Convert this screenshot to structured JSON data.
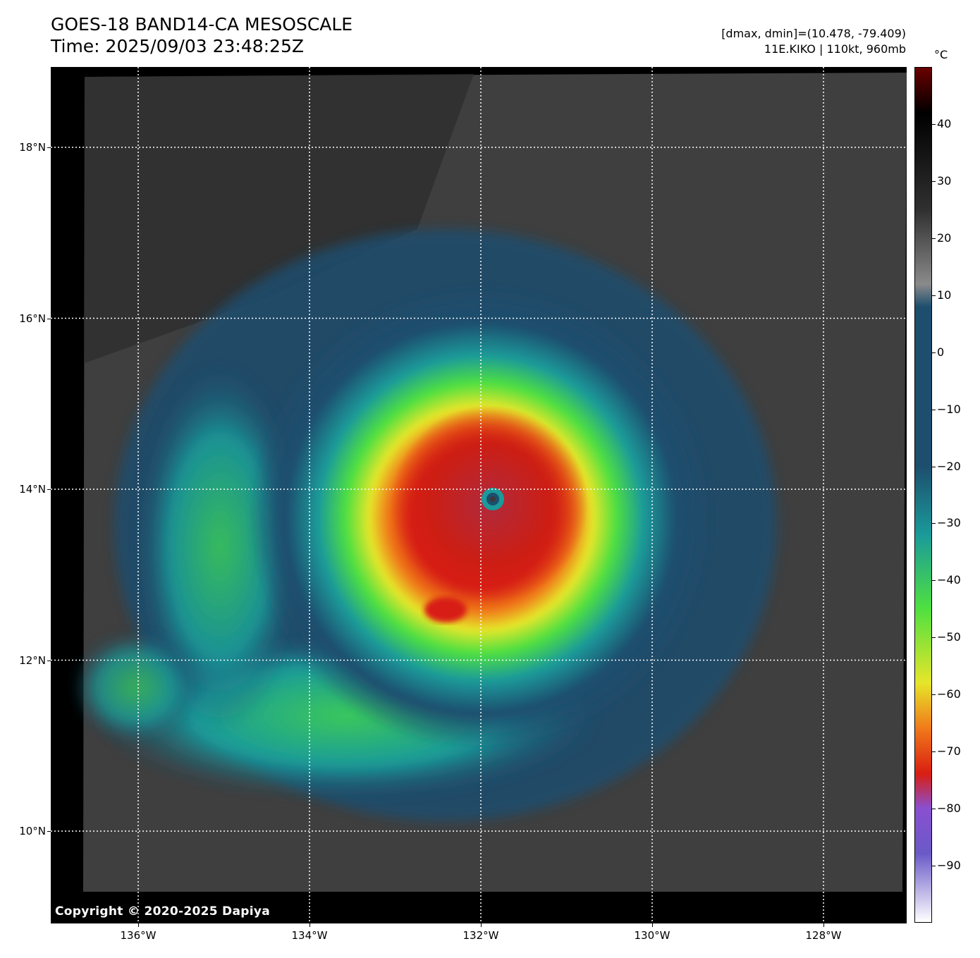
{
  "header": {
    "title": "GOES-18 BAND14-CA MESOSCALE",
    "time": "Time: 2025/09/03 23:48:25Z",
    "range_info": "[dmax, dmin]=(10.478, -79.409)",
    "storm_info": "11E.KIKO | 110kt, 960mb"
  },
  "map": {
    "latitude_labels": [
      "18°N",
      "16°N",
      "14°N",
      "12°N",
      "10°N"
    ],
    "latitudes": [
      18,
      16,
      14,
      12,
      10
    ],
    "longitude_labels": [
      "136°W",
      "134°W",
      "132°W",
      "130°W",
      "128°W"
    ],
    "longitudes": [
      -136,
      -134,
      -132,
      -130,
      -128
    ],
    "storm_center": {
      "lat": 13.9,
      "lon": -131.9
    },
    "copyright": "Copyright © 2020-2025 Dapiya"
  },
  "colorbar": {
    "unit": "°C",
    "tick_labels": [
      "40",
      "30",
      "20",
      "10",
      "0",
      "−10",
      "−20",
      "−30",
      "−40",
      "−50",
      "−60",
      "−70",
      "−80",
      "−90"
    ],
    "tick_values": [
      40,
      30,
      20,
      10,
      0,
      -10,
      -20,
      -30,
      -40,
      -50,
      -60,
      -70,
      -80,
      -90
    ],
    "range": [
      -100,
      50
    ]
  },
  "colors": {
    "background": "#000000",
    "warm_scene": "#3f3f3f",
    "cold_blue": "#1d4e6e",
    "teal": "#1a9a9a",
    "green": "#4fe040",
    "yellow": "#e6e62a",
    "orange": "#f07a1a",
    "red": "#d81e12",
    "purple": "#8a4fd0",
    "gridline": "#ffffff"
  }
}
